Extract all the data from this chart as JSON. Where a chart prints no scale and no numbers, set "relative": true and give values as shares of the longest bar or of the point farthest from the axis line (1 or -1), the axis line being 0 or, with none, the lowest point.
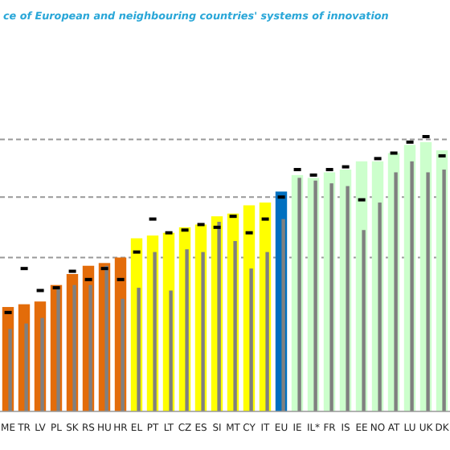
{
  "chart_data": {
    "type": "bar",
    "title": "ce of European and neighbouring countries' systems of innovation",
    "relative": true,
    "categories": [
      "ME",
      "TR",
      "LV",
      "PL",
      "SK",
      "RS",
      "HU",
      "HR",
      "EL",
      "PT",
      "LT",
      "CZ",
      "ES",
      "SI",
      "MT",
      "CY",
      "IT",
      "EU",
      "IE",
      "IL*",
      "FR",
      "IS",
      "EE",
      "NO",
      "AT",
      "LU",
      "UK",
      "DK"
    ],
    "series": [
      {
        "colors": [
          "#e36c0a",
          "#e36c0a",
          "#e36c0a",
          "#e36c0a",
          "#e36c0a",
          "#e36c0a",
          "#e36c0a",
          "#e36c0a",
          "#ffff00",
          "#ffff00",
          "#ffff00",
          "#ffff00",
          "#ffff00",
          "#ffff00",
          "#ffff00",
          "#ffff00",
          "#ffff00",
          "#0070c0",
          "#ccffcc",
          "#ccffcc",
          "#ccffcc",
          "#ccffcc",
          "#ccffcc",
          "#ccffcc",
          "#ccffcc",
          "#ccffcc",
          "#ccffcc",
          "#ccffcc"
        ],
        "values": [
          0.38,
          0.39,
          0.4,
          0.46,
          0.5,
          0.53,
          0.54,
          0.56,
          0.63,
          0.64,
          0.65,
          0.67,
          0.68,
          0.71,
          0.72,
          0.75,
          0.76,
          0.8,
          0.86,
          0.85,
          0.87,
          0.88,
          0.91,
          0.91,
          0.94,
          0.97,
          0.98,
          0.95
        ]
      },
      {
        "color": "#808080",
        "values": [
          0.3,
          0.32,
          0.34,
          0.45,
          0.46,
          0.46,
          0.53,
          0.41,
          0.45,
          0.58,
          0.44,
          0.59,
          0.58,
          0.69,
          0.62,
          0.52,
          0.58,
          0.7,
          0.85,
          0.84,
          0.83,
          0.82,
          0.66,
          0.76,
          0.87,
          0.91,
          0.87,
          0.88
        ]
      },
      {
        "type": "scatter",
        "color": "#000000",
        "values": [
          0.36,
          0.52,
          0.44,
          0.45,
          0.51,
          0.48,
          0.52,
          0.48,
          0.58,
          0.7,
          0.65,
          0.66,
          0.68,
          0.67,
          0.71,
          0.65,
          0.7,
          0.78,
          0.88,
          0.86,
          0.88,
          0.89,
          0.77,
          0.92,
          0.94,
          0.98,
          1.0,
          0.93
        ]
      }
    ],
    "ref_lines": [
      {
        "axis": "y",
        "value": 0.99,
        "color": "#999999",
        "line_style": "dashed"
      },
      {
        "axis": "y",
        "value": 0.78,
        "color": "#999999",
        "line_style": "dashed"
      },
      {
        "axis": "y",
        "value": 0.56,
        "color": "#999999",
        "line_style": "dashed"
      }
    ]
  }
}
